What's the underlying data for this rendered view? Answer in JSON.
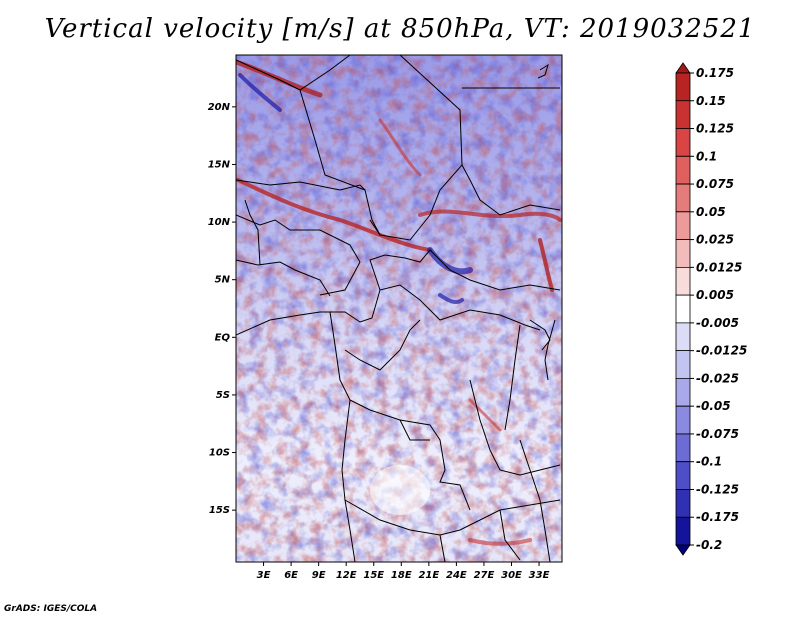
{
  "title": "Vertical velocity [m/s] at 850hPa, VT: 2019032521",
  "credit": "GrADS: IGES/COLA",
  "map": {
    "lat_range": [
      -19.5,
      24.5
    ],
    "lon_range": [
      0,
      35.5
    ],
    "lat_ticks": [
      {
        "value": 20,
        "label": "20N"
      },
      {
        "value": 15,
        "label": "15N"
      },
      {
        "value": 10,
        "label": "10N"
      },
      {
        "value": 5,
        "label": "5N"
      },
      {
        "value": 0,
        "label": "EQ"
      },
      {
        "value": -5,
        "label": "5S"
      },
      {
        "value": -10,
        "label": "10S"
      },
      {
        "value": -15,
        "label": "15S"
      }
    ],
    "lon_ticks": [
      {
        "value": 3,
        "label": "3E"
      },
      {
        "value": 6,
        "label": "6E"
      },
      {
        "value": 9,
        "label": "9E"
      },
      {
        "value": 12,
        "label": "12E"
      },
      {
        "value": 15,
        "label": "15E"
      },
      {
        "value": 18,
        "label": "18E"
      },
      {
        "value": 21,
        "label": "21E"
      },
      {
        "value": 24,
        "label": "24E"
      },
      {
        "value": 27,
        "label": "27E"
      },
      {
        "value": 30,
        "label": "30E"
      },
      {
        "value": 33,
        "label": "33E"
      }
    ]
  },
  "colorbar": {
    "levels": [
      "0.175",
      "0.15",
      "0.125",
      "0.1",
      "0.075",
      "0.05",
      "0.025",
      "0.0125",
      "0.005",
      "-0.005",
      "-0.0125",
      "-0.025",
      "-0.05",
      "-0.075",
      "-0.1",
      "-0.125",
      "-0.175",
      "-0.2"
    ],
    "colors": [
      "#a01a1a",
      "#b82424",
      "#c83232",
      "#d94444",
      "#e06060",
      "#e57c7c",
      "#ec9a9a",
      "#f2bcbc",
      "#f8dcdc",
      "#ffffff",
      "#dcdcf6",
      "#c4c4f0",
      "#a8a8ea",
      "#8a8ae0",
      "#6c6cd4",
      "#4e4ec6",
      "#3030b2",
      "#14149a",
      "#00007a"
    ]
  }
}
